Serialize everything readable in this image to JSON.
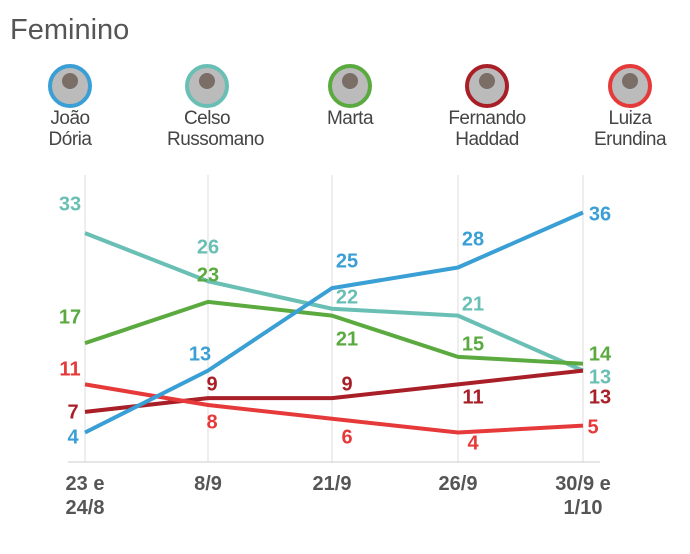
{
  "chart_data": {
    "type": "line",
    "title": "Feminino",
    "categories": [
      "23 e 24/8",
      "8/9",
      "21/9",
      "26/9",
      "30/9 e 1/10"
    ],
    "ylim": [
      0,
      40
    ],
    "series": [
      {
        "name": "João Dória",
        "color": "#3a9fd5",
        "values": [
          4,
          13,
          25,
          28,
          36
        ]
      },
      {
        "name": "Celso Russomano",
        "color": "#6abfb5",
        "values": [
          33,
          26,
          22,
          21,
          13
        ]
      },
      {
        "name": "Marta",
        "color": "#5aaa3f",
        "values": [
          17,
          23,
          21,
          15,
          14
        ]
      },
      {
        "name": "Fernando Haddad",
        "color": "#a81f27",
        "values": [
          7,
          9,
          9,
          11,
          13
        ]
      },
      {
        "name": "Luiza Erundina",
        "color": "#e63a3a",
        "values": [
          11,
          8,
          6,
          4,
          5
        ]
      }
    ]
  }
}
